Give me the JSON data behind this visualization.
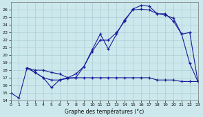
{
  "title": "Graphe des températures (°c)",
  "background_color": "#cce8ec",
  "grid_color": "#aacdd4",
  "line_color": "#1a1a9a",
  "xlim": [
    0,
    23
  ],
  "ylim": [
    14,
    27
  ],
  "yticks": [
    14,
    15,
    16,
    17,
    18,
    19,
    20,
    21,
    22,
    23,
    24,
    25,
    26
  ],
  "xticks": [
    0,
    1,
    2,
    3,
    4,
    5,
    6,
    7,
    8,
    9,
    10,
    11,
    12,
    13,
    14,
    15,
    16,
    17,
    18,
    19,
    20,
    21,
    22,
    23
  ],
  "lineA_x": [
    0,
    1,
    2,
    3,
    4,
    5,
    6,
    7,
    8,
    9,
    10,
    11,
    12,
    13,
    14,
    15,
    16,
    17,
    18,
    19,
    20,
    21,
    22,
    23
  ],
  "lineA_y": [
    15.0,
    14.3,
    18.3,
    17.7,
    17.0,
    15.7,
    16.7,
    16.9,
    17.0,
    18.5,
    20.7,
    22.8,
    20.8,
    22.8,
    24.7,
    26.0,
    26.1,
    26.0,
    25.5,
    25.3,
    24.9,
    22.8,
    18.9,
    16.5
  ],
  "lineB_x": [
    2,
    3,
    4,
    5,
    6,
    7,
    8,
    9,
    10,
    11,
    12,
    13,
    14,
    15,
    16,
    17,
    18,
    19,
    20,
    21,
    22,
    23
  ],
  "lineB_y": [
    18.3,
    18.0,
    18.0,
    17.7,
    17.5,
    17.0,
    17.5,
    18.5,
    20.5,
    22.0,
    22.0,
    23.0,
    24.5,
    26.1,
    26.6,
    26.5,
    25.5,
    25.5,
    24.5,
    22.8,
    23.0,
    16.5
  ],
  "lineC_x": [
    2,
    3,
    4,
    5,
    6,
    7,
    8,
    9,
    10,
    11,
    12,
    13,
    14,
    15,
    16,
    17,
    18,
    19,
    20,
    21,
    22,
    23
  ],
  "lineC_y": [
    18.3,
    17.7,
    17.0,
    16.7,
    16.7,
    17.0,
    17.0,
    17.0,
    17.0,
    17.0,
    17.0,
    17.0,
    17.0,
    17.0,
    17.0,
    17.0,
    16.7,
    16.7,
    16.7,
    16.5,
    16.5,
    16.5
  ]
}
